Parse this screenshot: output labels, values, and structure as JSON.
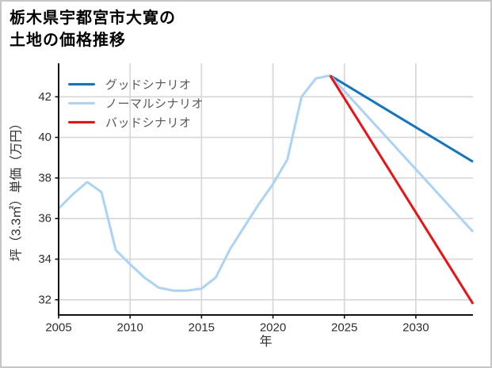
{
  "frame": {
    "background": "#ffffff",
    "border_color": "#c6c6c6"
  },
  "title": {
    "line1": "栃木県宇都宮市大寛の",
    "line2": "土地の価格推移"
  },
  "chart_data": {
    "type": "line",
    "title": "栃木県宇都宮市大寛の土地の価格推移",
    "xlabel": "年",
    "ylabel": "坪（3.3㎡）単価（万円）",
    "xlim": [
      2005,
      2034
    ],
    "ylim": [
      31.25,
      43.65
    ],
    "x_ticks": [
      2005,
      2010,
      2015,
      2020,
      2025,
      2030
    ],
    "y_ticks": [
      32,
      34,
      36,
      38,
      40,
      42
    ],
    "grid": true,
    "grid_color": "#d6d6d6",
    "axis_color": "#111111",
    "tick_label_color": "#2e2e2e",
    "legend_position": "upper-left",
    "legend_text_color": "#555759",
    "series": [
      {
        "name": "グッドシナリオ",
        "color": "#0d74c6",
        "x": [
          2024,
          2034
        ],
        "y": [
          43.05,
          38.8
        ]
      },
      {
        "name": "ノーマルシナリオ",
        "color": "#aad3f7",
        "x": [
          2005,
          2006,
          2007,
          2008,
          2009,
          2010,
          2011,
          2012,
          2013,
          2014,
          2015,
          2016,
          2017,
          2018,
          2019,
          2020,
          2021,
          2022,
          2023,
          2024,
          2034
        ],
        "y": [
          36.5,
          37.2,
          37.8,
          37.3,
          34.45,
          33.75,
          33.1,
          32.6,
          32.45,
          32.45,
          32.55,
          33.1,
          34.5,
          35.6,
          36.7,
          37.7,
          38.9,
          42.0,
          42.9,
          43.05,
          35.35
        ]
      },
      {
        "name": "バッドシナリオ",
        "color": "#ee1111",
        "x": [
          2024,
          2034
        ],
        "y": [
          43.05,
          31.8
        ]
      }
    ]
  }
}
